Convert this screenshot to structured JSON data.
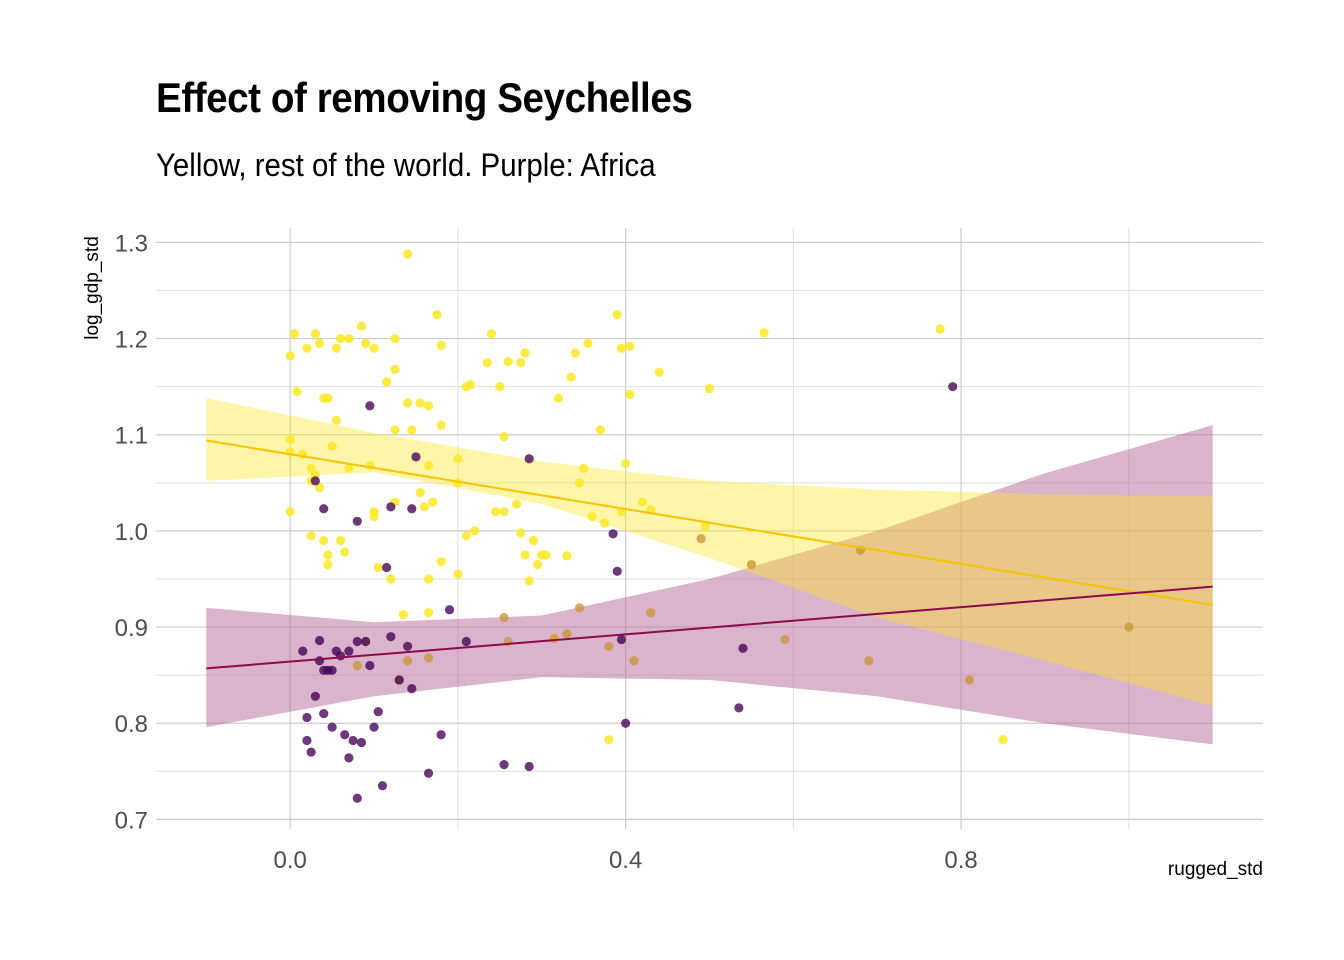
{
  "chart_data": {
    "type": "scatter",
    "title": "Effect of removing Seychelles",
    "subtitle": "Yellow, rest of the world. Purple: Africa",
    "xlabel": "rugged_std",
    "ylabel": "log_gdp_std",
    "xlim": [
      -0.16,
      1.16
    ],
    "ylim": [
      0.69,
      1.315
    ],
    "x_ticks": [
      0.0,
      0.4,
      0.8
    ],
    "x_tick_labels": [
      "0.0",
      "0.4",
      "0.8"
    ],
    "y_ticks": [
      0.7,
      0.8,
      0.9,
      1.0,
      1.1,
      1.2,
      1.3
    ],
    "y_tick_labels": [
      "0.7",
      "0.8",
      "0.9",
      "1.0",
      "1.1",
      "1.2",
      "1.3"
    ],
    "grid": true,
    "colors": {
      "rest_points": "#FDE725",
      "rest_line": "#F5C400",
      "rest_band": "#FDE725",
      "africa_points": "#440154",
      "africa_line": "#8B0A50",
      "africa_band": "#B5679A"
    },
    "series": [
      {
        "key": "rest",
        "points": [
          [
            0.0,
            1.182
          ],
          [
            0.005,
            1.205
          ],
          [
            0.008,
            1.145
          ],
          [
            0.02,
            1.19
          ],
          [
            0.03,
            1.205
          ],
          [
            0.035,
            1.195
          ],
          [
            0.04,
            1.138
          ],
          [
            0.045,
            1.138
          ],
          [
            0.055,
            1.19
          ],
          [
            0.06,
            1.2
          ],
          [
            0.07,
            1.2
          ],
          [
            0.085,
            1.213
          ],
          [
            0.09,
            1.195
          ],
          [
            0.1,
            1.19
          ],
          [
            0.115,
            1.155
          ],
          [
            0.125,
            1.168
          ],
          [
            0.125,
            1.2
          ],
          [
            0.14,
            1.133
          ],
          [
            0.155,
            1.133
          ],
          [
            0.165,
            1.13
          ],
          [
            0.175,
            1.225
          ],
          [
            0.18,
            1.193
          ],
          [
            0.14,
            1.288
          ],
          [
            0.0,
            1.095
          ],
          [
            0.0,
            1.082
          ],
          [
            0.015,
            1.08
          ],
          [
            0.025,
            1.065
          ],
          [
            0.03,
            1.058
          ],
          [
            0.035,
            1.045
          ],
          [
            0.025,
            1.052
          ],
          [
            0.05,
            1.088
          ],
          [
            0.055,
            1.115
          ],
          [
            0.07,
            1.065
          ],
          [
            0.095,
            1.068
          ],
          [
            0.125,
            1.105
          ],
          [
            0.145,
            1.105
          ],
          [
            0.165,
            1.068
          ],
          [
            0.18,
            1.11
          ],
          [
            0.2,
            1.075
          ],
          [
            0.0,
            1.02
          ],
          [
            0.025,
            0.995
          ],
          [
            0.04,
            0.99
          ],
          [
            0.045,
            0.975
          ],
          [
            0.045,
            0.965
          ],
          [
            0.06,
            0.99
          ],
          [
            0.065,
            0.978
          ],
          [
            0.1,
            1.02
          ],
          [
            0.1,
            1.015
          ],
          [
            0.105,
            0.962
          ],
          [
            0.12,
            0.95
          ],
          [
            0.125,
            1.03
          ],
          [
            0.135,
            0.913
          ],
          [
            0.155,
            1.04
          ],
          [
            0.16,
            1.025
          ],
          [
            0.165,
            0.95
          ],
          [
            0.165,
            0.915
          ],
          [
            0.17,
            1.03
          ],
          [
            0.18,
            0.968
          ],
          [
            0.2,
            0.955
          ],
          [
            0.2,
            1.05
          ],
          [
            0.21,
            1.15
          ],
          [
            0.21,
            0.995
          ],
          [
            0.22,
            1.0
          ],
          [
            0.235,
            1.175
          ],
          [
            0.24,
            1.205
          ],
          [
            0.245,
            1.02
          ],
          [
            0.25,
            1.15
          ],
          [
            0.255,
            1.098
          ],
          [
            0.255,
            1.02
          ],
          [
            0.26,
            1.176
          ],
          [
            0.27,
            1.028
          ],
          [
            0.275,
            1.175
          ],
          [
            0.28,
            1.185
          ],
          [
            0.275,
            0.998
          ],
          [
            0.28,
            0.975
          ],
          [
            0.285,
            0.948
          ],
          [
            0.29,
            0.99
          ],
          [
            0.295,
            0.965
          ],
          [
            0.3,
            0.975
          ],
          [
            0.305,
            0.975
          ],
          [
            0.315,
            0.888
          ],
          [
            0.32,
            1.138
          ],
          [
            0.33,
            0.974
          ],
          [
            0.335,
            1.16
          ],
          [
            0.34,
            1.185
          ],
          [
            0.345,
            1.05
          ],
          [
            0.35,
            1.065
          ],
          [
            0.355,
            1.195
          ],
          [
            0.36,
            1.015
          ],
          [
            0.37,
            1.105
          ],
          [
            0.375,
            1.008
          ],
          [
            0.39,
            1.225
          ],
          [
            0.395,
            1.02
          ],
          [
            0.395,
            1.19
          ],
          [
            0.4,
            1.07
          ],
          [
            0.405,
            1.142
          ],
          [
            0.405,
            1.192
          ],
          [
            0.42,
            1.03
          ],
          [
            0.43,
            1.022
          ],
          [
            0.44,
            1.165
          ],
          [
            0.495,
            1.005
          ],
          [
            0.5,
            1.148
          ],
          [
            0.565,
            1.206
          ],
          [
            0.775,
            1.21
          ],
          [
            0.85,
            0.783
          ],
          [
            0.38,
            0.783
          ],
          [
            0.215,
            1.152
          ]
        ],
        "fit": {
          "x0": -0.1,
          "y0": 1.094,
          "x1": 1.1,
          "y1": 0.923
        },
        "band_upper": [
          [
            -0.1,
            1.138
          ],
          [
            0.1,
            1.102
          ],
          [
            0.3,
            1.072
          ],
          [
            0.5,
            1.052
          ],
          [
            0.7,
            1.043
          ],
          [
            0.9,
            1.038
          ],
          [
            1.1,
            1.036
          ]
        ],
        "band_lower": [
          [
            -0.1,
            1.052
          ],
          [
            0.1,
            1.061
          ],
          [
            0.3,
            1.028
          ],
          [
            0.5,
            0.972
          ],
          [
            0.7,
            0.91
          ],
          [
            0.9,
            0.865
          ],
          [
            1.1,
            0.818
          ]
        ]
      },
      {
        "key": "africa",
        "points": [
          [
            0.015,
            0.875
          ],
          [
            0.02,
            0.806
          ],
          [
            0.02,
            0.782
          ],
          [
            0.025,
            0.77
          ],
          [
            0.03,
            0.828
          ],
          [
            0.035,
            0.865
          ],
          [
            0.035,
            0.886
          ],
          [
            0.04,
            0.855
          ],
          [
            0.04,
            0.81
          ],
          [
            0.045,
            0.855
          ],
          [
            0.05,
            0.855
          ],
          [
            0.05,
            0.796
          ],
          [
            0.055,
            0.875
          ],
          [
            0.06,
            0.87
          ],
          [
            0.065,
            0.788
          ],
          [
            0.07,
            0.875
          ],
          [
            0.07,
            0.764
          ],
          [
            0.075,
            0.782
          ],
          [
            0.08,
            0.885
          ],
          [
            0.08,
            0.722
          ],
          [
            0.085,
            0.78
          ],
          [
            0.09,
            0.885
          ],
          [
            0.095,
            0.86
          ],
          [
            0.1,
            0.796
          ],
          [
            0.105,
            0.812
          ],
          [
            0.11,
            0.735
          ],
          [
            0.115,
            0.962
          ],
          [
            0.12,
            0.89
          ],
          [
            0.13,
            0.845
          ],
          [
            0.14,
            0.88
          ],
          [
            0.145,
            0.836
          ],
          [
            0.15,
            1.077
          ],
          [
            0.165,
            0.748
          ],
          [
            0.18,
            0.788
          ],
          [
            0.19,
            0.918
          ],
          [
            0.255,
            0.757
          ],
          [
            0.285,
            0.755
          ],
          [
            0.285,
            1.075
          ],
          [
            0.395,
            0.887
          ],
          [
            0.4,
            0.8
          ],
          [
            0.535,
            0.816
          ],
          [
            0.54,
            0.878
          ],
          [
            0.79,
            1.15
          ],
          [
            0.095,
            1.13
          ],
          [
            0.145,
            1.023
          ],
          [
            0.04,
            1.023
          ],
          [
            0.08,
            1.01
          ],
          [
            0.12,
            1.025
          ],
          [
            0.39,
            0.958
          ],
          [
            0.385,
            0.997
          ],
          [
            0.21,
            0.885
          ],
          [
            0.03,
            1.052
          ]
        ],
        "fit": {
          "x0": -0.1,
          "y0": 0.857,
          "x1": 1.1,
          "y1": 0.942
        },
        "band_upper": [
          [
            -0.1,
            0.92
          ],
          [
            0.1,
            0.905
          ],
          [
            0.3,
            0.912
          ],
          [
            0.5,
            0.95
          ],
          [
            0.7,
            1.0
          ],
          [
            0.9,
            1.06
          ],
          [
            1.1,
            1.11
          ]
        ],
        "band_lower": [
          [
            -0.1,
            0.796
          ],
          [
            0.1,
            0.828
          ],
          [
            0.3,
            0.848
          ],
          [
            0.5,
            0.845
          ],
          [
            0.7,
            0.828
          ],
          [
            0.9,
            0.8
          ],
          [
            1.1,
            0.778
          ]
        ]
      }
    ],
    "overlap_points": [
      [
        0.08,
        0.86
      ],
      [
        0.09,
        0.885
      ],
      [
        0.13,
        0.845
      ],
      [
        0.14,
        0.865
      ],
      [
        0.165,
        0.868
      ],
      [
        0.255,
        0.91
      ],
      [
        0.26,
        0.885
      ],
      [
        0.315,
        0.888
      ],
      [
        0.33,
        0.893
      ],
      [
        0.345,
        0.92
      ],
      [
        0.38,
        0.88
      ],
      [
        0.41,
        0.865
      ],
      [
        0.43,
        0.915
      ],
      [
        0.49,
        0.992
      ],
      [
        0.55,
        0.965
      ],
      [
        0.59,
        0.887
      ],
      [
        0.68,
        0.98
      ],
      [
        0.69,
        0.865
      ],
      [
        0.81,
        0.845
      ],
      [
        1.0,
        0.9
      ]
    ]
  }
}
